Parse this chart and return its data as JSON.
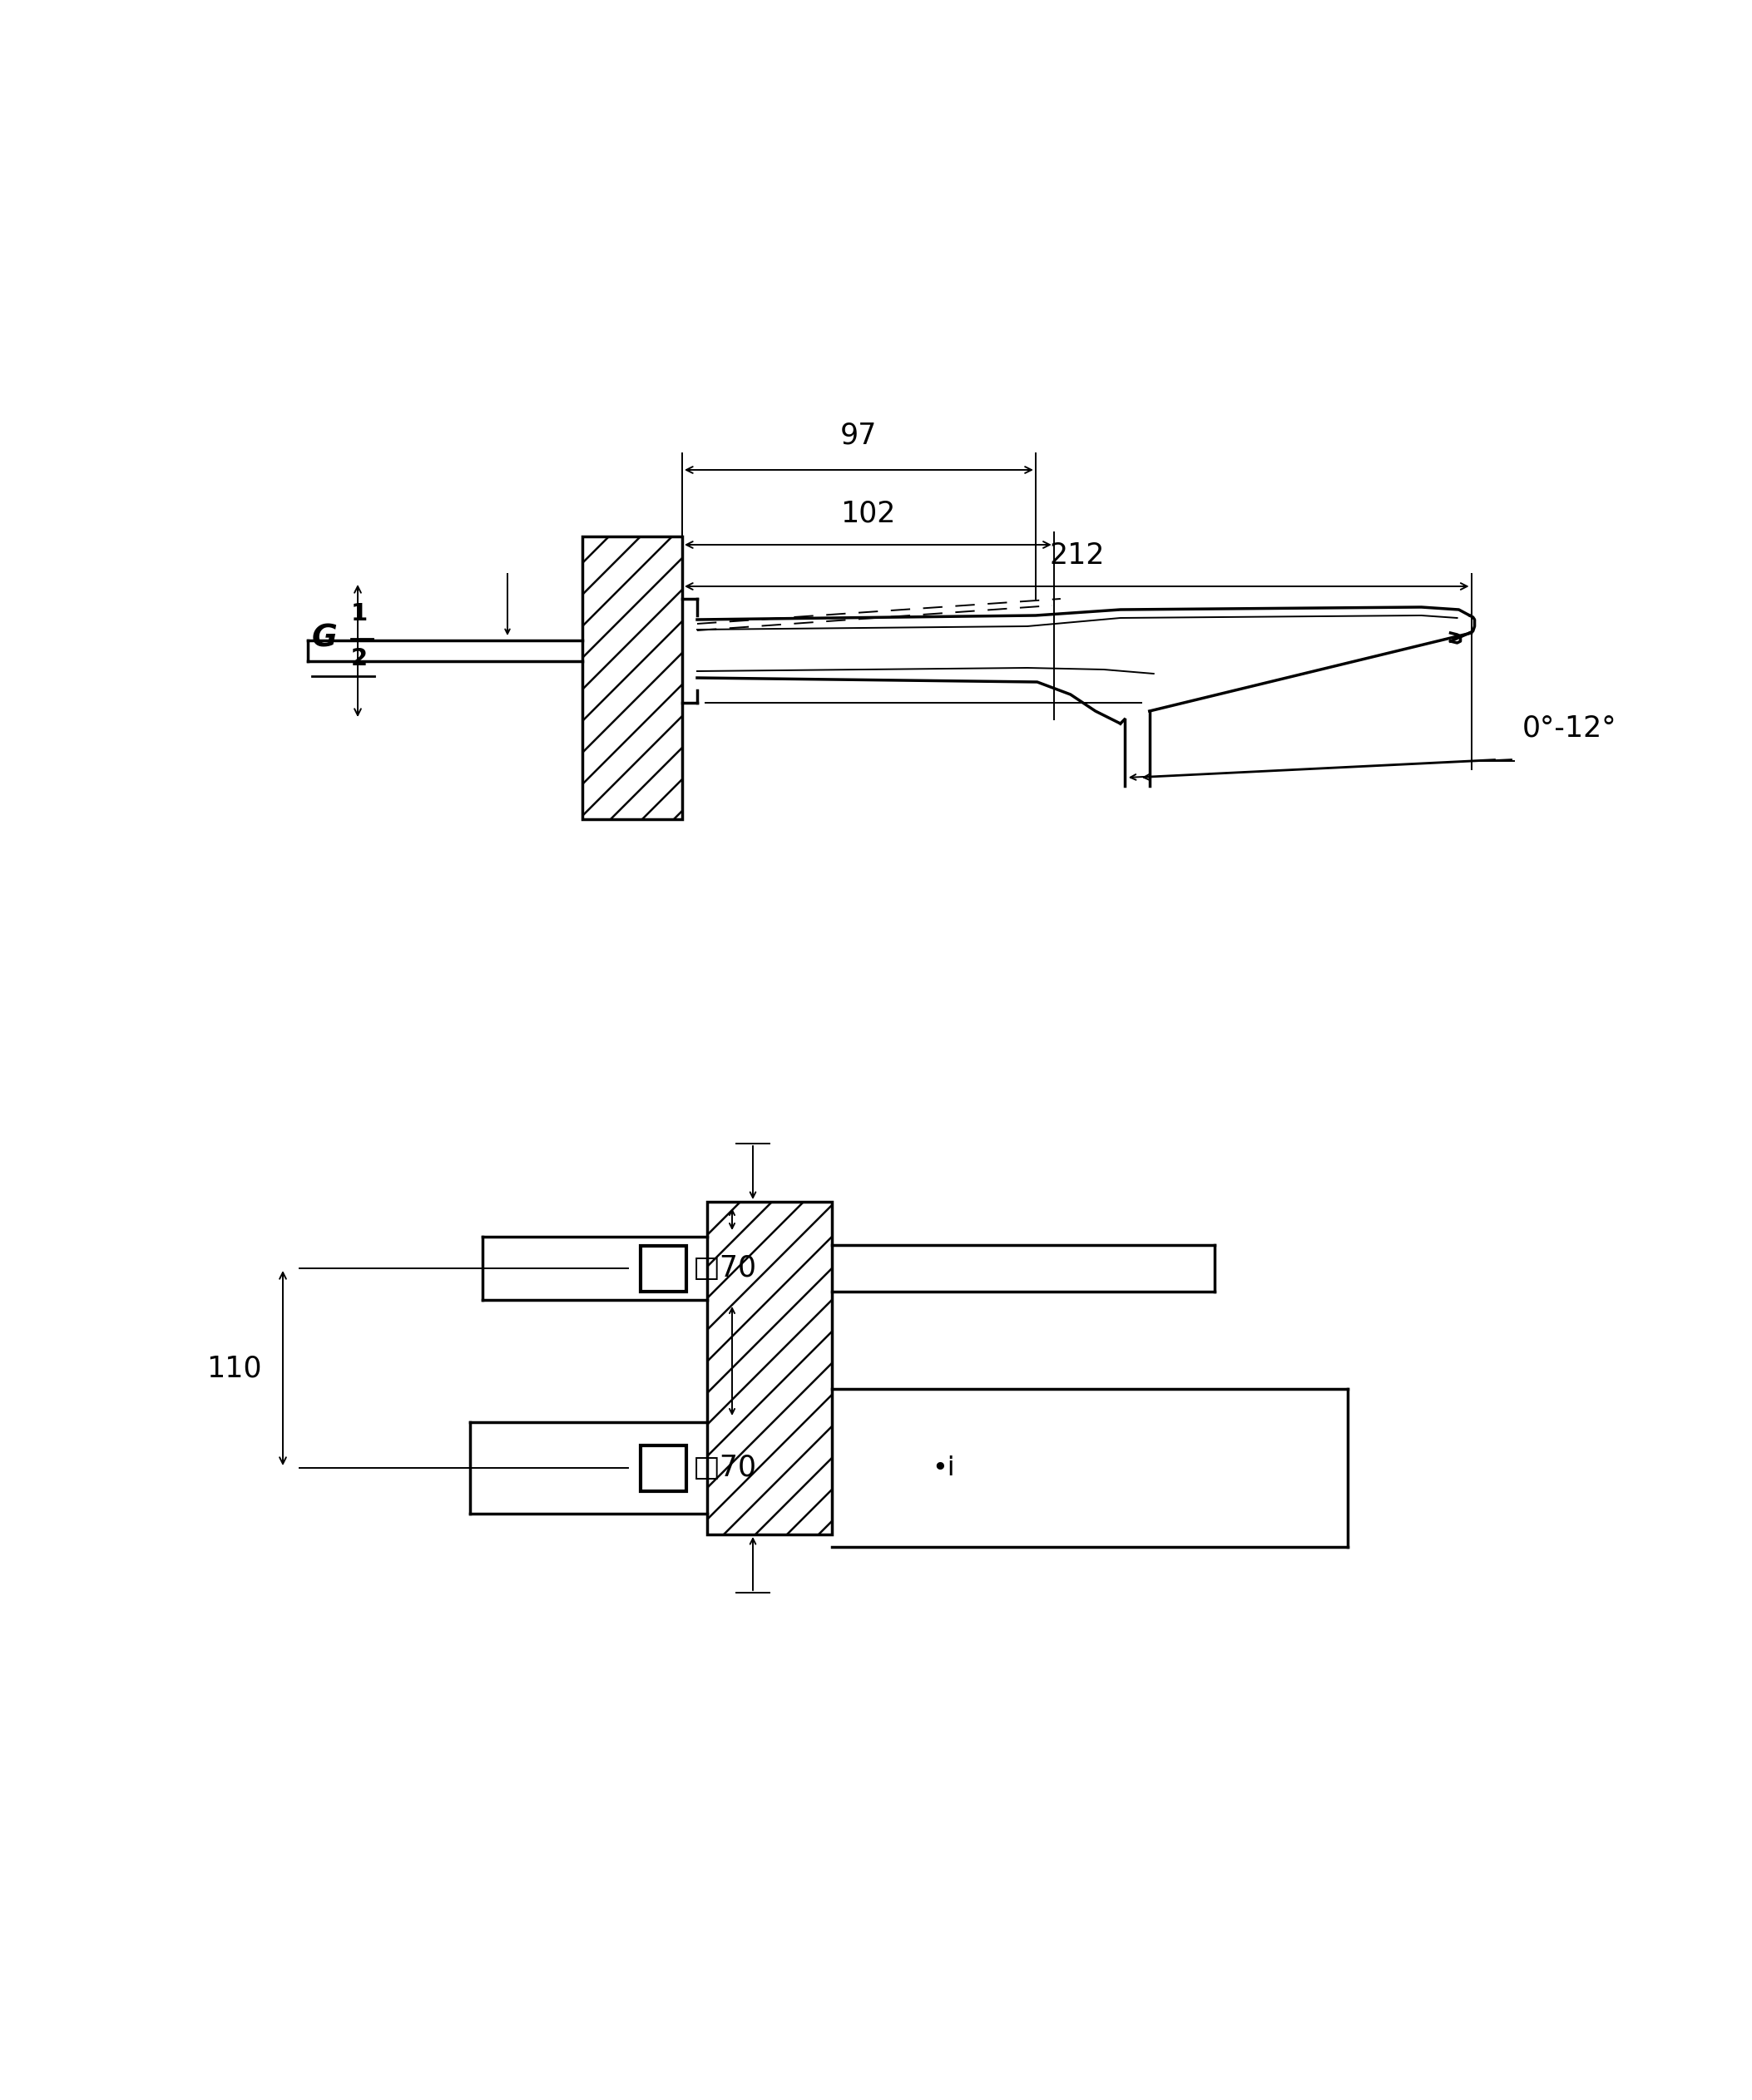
{
  "bg_color": "#ffffff",
  "lc": "#000000",
  "lw": 2.5,
  "lt": 1.4,
  "lh": 1.1,
  "fs": 21,
  "dim_97": "97",
  "dim_102": "102",
  "dim_212": "212",
  "dim_g12": "G",
  "dim_g12_exp": "1",
  "dim_g12_den": "2",
  "dim_angle": "0°-12°",
  "dim_110": "110",
  "dim_70a": "□70",
  "dim_70b": "□70",
  "note_i": "•i"
}
